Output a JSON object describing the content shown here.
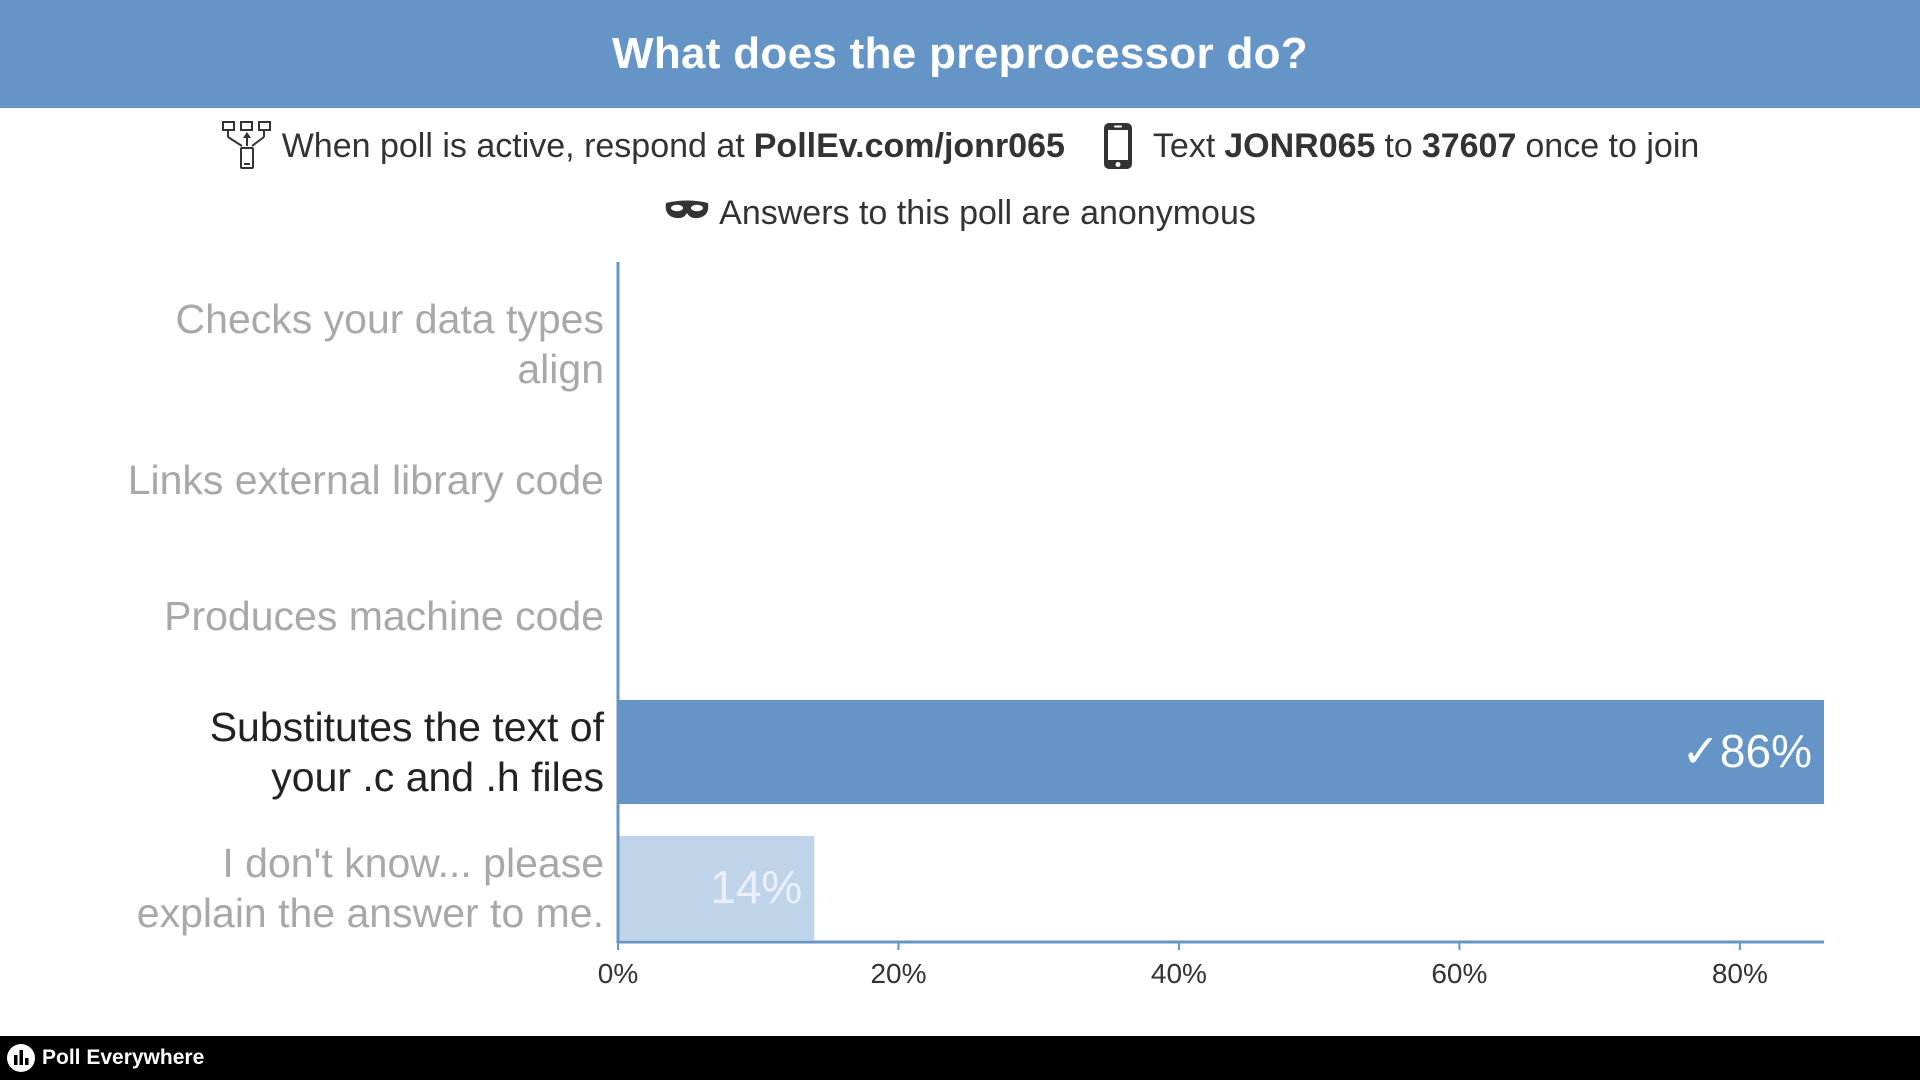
{
  "header": {
    "title": "What does the preprocessor do?",
    "background": "#6495c6"
  },
  "instructions": {
    "respond_prefix": "When poll is active, respond at",
    "url": "PollEv.com/jonr065",
    "text_prefix": "Text",
    "keyword": "JONR065",
    "to_word": "to",
    "number": "37607",
    "text_suffix": "once to join",
    "anonymous_note": "Answers to this poll are anonymous",
    "icons": [
      "network-icon",
      "phone-icon",
      "mask-icon"
    ]
  },
  "chart_data": {
    "type": "bar",
    "orientation": "horizontal",
    "categories": [
      [
        "Checks your data types",
        "align"
      ],
      [
        "Links external library code"
      ],
      [
        "Produces machine code"
      ],
      [
        "Substitutes the text of",
        "your .c and .h files"
      ],
      [
        "I don't know... please",
        "explain the answer to me."
      ]
    ],
    "values": [
      0,
      0,
      0,
      86,
      14
    ],
    "value_labels": [
      "",
      "",
      "",
      "✓86%",
      "14%"
    ],
    "correct": [
      false,
      false,
      false,
      true,
      false
    ],
    "x_ticks": [
      0,
      20,
      40,
      60,
      80
    ],
    "x_tick_labels": [
      "0%",
      "20%",
      "40%",
      "60%",
      "80%"
    ],
    "xlim": [
      0,
      86
    ],
    "grid": false,
    "colors": {
      "correct_bar": "#6495c6",
      "other_bar": "#c0d4e9",
      "correct_label": "#222222",
      "other_label": "#a8a8a8",
      "axis": "#6495c6"
    }
  },
  "footer": {
    "brand": "Poll Everywhere"
  }
}
